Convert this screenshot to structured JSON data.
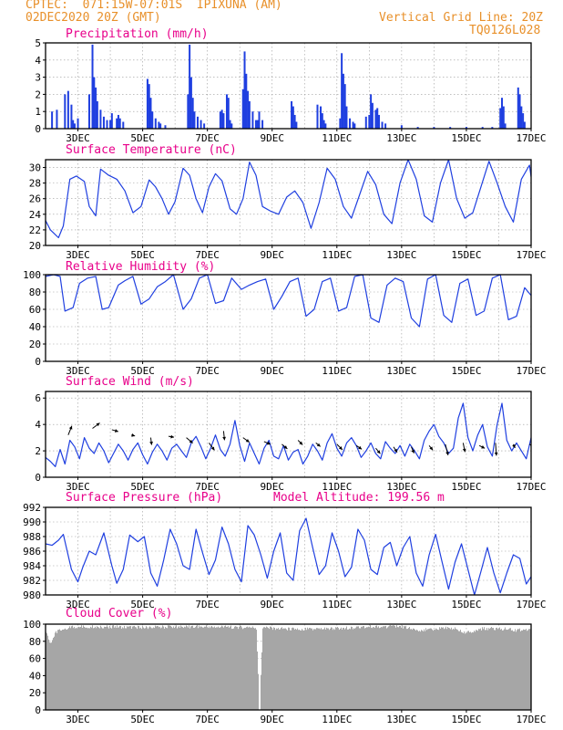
{
  "header": {
    "line1_left": "CPTEC:  071:15W-07:01S  IPIXUNA (AM)",
    "line2_left": "02DEC2020 20Z (GMT)",
    "line1_right": "Vertical Grid Line: 20Z",
    "line2_right": "TQ0126L028"
  },
  "colors": {
    "header": "#e8902a",
    "title": "#e8008a",
    "series": "#1f3fe0",
    "cloud": "#a6a6a6",
    "grid": "#9a9a9a"
  },
  "x_axis": {
    "ticks": [
      "3DEC",
      "5DEC",
      "7DEC",
      "9DEC",
      "11DEC",
      "13DEC",
      "15DEC",
      "17DEC"
    ],
    "range_days": [
      0,
      15
    ]
  },
  "chart_data": [
    {
      "type": "bar",
      "title": "Precipitation (mm/h)",
      "ylim": [
        0,
        5
      ],
      "yticks": [
        "0",
        "1",
        "2",
        "3",
        "4",
        "5"
      ],
      "bars": [
        [
          0.2,
          1.0
        ],
        [
          0.35,
          1.1
        ],
        [
          0.6,
          2.0
        ],
        [
          0.7,
          2.2
        ],
        [
          0.8,
          1.4
        ],
        [
          0.85,
          0.5
        ],
        [
          0.9,
          0.3
        ],
        [
          1.0,
          0.6
        ],
        [
          1.35,
          2.0
        ],
        [
          1.45,
          4.9
        ],
        [
          1.5,
          3.0
        ],
        [
          1.55,
          2.4
        ],
        [
          1.6,
          1.6
        ],
        [
          1.7,
          1.1
        ],
        [
          1.8,
          0.7
        ],
        [
          1.9,
          0.5
        ],
        [
          2.0,
          0.5
        ],
        [
          2.05,
          0.9
        ],
        [
          2.2,
          0.6
        ],
        [
          2.25,
          0.8
        ],
        [
          2.3,
          0.6
        ],
        [
          2.4,
          0.4
        ],
        [
          3.15,
          2.9
        ],
        [
          3.2,
          2.6
        ],
        [
          3.25,
          1.8
        ],
        [
          3.3,
          1.0
        ],
        [
          3.4,
          0.6
        ],
        [
          3.5,
          0.4
        ],
        [
          3.55,
          0.3
        ],
        [
          3.7,
          0.2
        ],
        [
          4.4,
          2.0
        ],
        [
          4.45,
          4.9
        ],
        [
          4.5,
          3.0
        ],
        [
          4.55,
          1.8
        ],
        [
          4.6,
          1.0
        ],
        [
          4.7,
          0.7
        ],
        [
          4.8,
          0.5
        ],
        [
          4.9,
          0.3
        ],
        [
          5.4,
          1.0
        ],
        [
          5.45,
          1.1
        ],
        [
          5.5,
          0.9
        ],
        [
          5.6,
          2.0
        ],
        [
          5.65,
          1.8
        ],
        [
          5.7,
          0.5
        ],
        [
          5.75,
          0.3
        ],
        [
          6.1,
          2.3
        ],
        [
          6.15,
          4.5
        ],
        [
          6.2,
          3.2
        ],
        [
          6.25,
          2.2
        ],
        [
          6.3,
          1.6
        ],
        [
          6.4,
          1.0
        ],
        [
          6.5,
          0.5
        ],
        [
          6.55,
          0.5
        ],
        [
          6.6,
          1.0
        ],
        [
          6.7,
          0.5
        ],
        [
          7.6,
          1.6
        ],
        [
          7.65,
          1.3
        ],
        [
          7.7,
          0.8
        ],
        [
          7.75,
          0.4
        ],
        [
          8.4,
          1.4
        ],
        [
          8.5,
          1.3
        ],
        [
          8.55,
          0.9
        ],
        [
          8.6,
          0.5
        ],
        [
          8.65,
          0.3
        ],
        [
          9.1,
          0.6
        ],
        [
          9.15,
          4.4
        ],
        [
          9.2,
          3.2
        ],
        [
          9.25,
          2.6
        ],
        [
          9.3,
          1.3
        ],
        [
          9.4,
          0.6
        ],
        [
          9.5,
          0.4
        ],
        [
          9.55,
          0.3
        ],
        [
          9.9,
          0.7
        ],
        [
          10.0,
          0.8
        ],
        [
          10.05,
          2.0
        ],
        [
          10.1,
          1.5
        ],
        [
          10.2,
          1.1
        ],
        [
          10.25,
          1.2
        ],
        [
          10.3,
          0.8
        ],
        [
          10.4,
          0.4
        ],
        [
          10.5,
          0.3
        ],
        [
          11.0,
          0.2
        ],
        [
          11.5,
          0.1
        ],
        [
          12.0,
          0.1
        ],
        [
          12.5,
          0.1
        ],
        [
          13.0,
          0.1
        ],
        [
          13.5,
          0.1
        ],
        [
          13.8,
          0.1
        ],
        [
          14.05,
          1.2
        ],
        [
          14.1,
          1.8
        ],
        [
          14.15,
          1.3
        ],
        [
          14.2,
          0.3
        ],
        [
          14.6,
          2.4
        ],
        [
          14.65,
          2.0
        ],
        [
          14.7,
          1.3
        ],
        [
          14.75,
          0.9
        ],
        [
          14.8,
          0.4
        ],
        [
          15.45,
          0.5
        ],
        [
          15.5,
          4.5
        ],
        [
          15.55,
          3.9
        ],
        [
          15.6,
          0.9
        ],
        [
          15.65,
          0.2
        ]
      ]
    },
    {
      "type": "line",
      "title": "Surface Temperature (nC)",
      "ylim": [
        20,
        31
      ],
      "yticks": [
        "20",
        "22",
        "24",
        "26",
        "28",
        "30"
      ],
      "x": [
        0.0,
        0.15,
        0.4,
        0.55,
        0.75,
        0.95,
        1.2,
        1.35,
        1.55,
        1.7,
        1.95,
        2.2,
        2.45,
        2.7,
        2.95,
        3.2,
        3.4,
        3.6,
        3.8,
        4.0,
        4.25,
        4.45,
        4.65,
        4.85,
        5.05,
        5.25,
        5.45,
        5.7,
        5.9,
        6.1,
        6.3,
        6.5,
        6.7,
        6.95,
        7.2,
        7.45,
        7.7,
        7.95,
        8.2,
        8.45,
        8.7,
        8.95,
        9.2,
        9.45,
        9.7,
        9.95,
        10.2,
        10.45,
        10.7,
        10.95,
        11.2,
        11.45,
        11.7,
        11.95,
        12.2,
        12.45,
        12.7,
        12.95,
        13.2,
        13.45,
        13.7,
        13.95,
        14.2,
        14.45,
        14.7,
        14.95,
        15.0
      ],
      "values": [
        23.2,
        22.0,
        21.0,
        22.5,
        28.5,
        28.9,
        28.2,
        25.0,
        23.8,
        29.8,
        29.0,
        28.5,
        27.0,
        24.2,
        25.0,
        28.4,
        27.5,
        26.0,
        24.0,
        25.6,
        29.9,
        29.0,
        26.0,
        24.2,
        27.5,
        29.2,
        28.3,
        24.7,
        24.0,
        26.0,
        30.7,
        29.0,
        25.0,
        24.4,
        24.0,
        26.2,
        27.0,
        25.5,
        22.2,
        25.5,
        29.9,
        28.5,
        25.0,
        23.5,
        26.5,
        29.5,
        27.8,
        24.0,
        22.8,
        28.0,
        31.0,
        28.5,
        23.8,
        23.0,
        28.0,
        31.0,
        26.0,
        23.5,
        24.2,
        27.5,
        30.8,
        28.0,
        25.0,
        23.0,
        28.5,
        30.3,
        28.8
      ]
    },
    {
      "type": "line",
      "title": "Relative Humidity (%)",
      "ylim": [
        0,
        100
      ],
      "yticks": [
        "0",
        "20",
        "40",
        "60",
        "80",
        "100"
      ],
      "x": [
        0.0,
        0.25,
        0.45,
        0.6,
        0.85,
        1.05,
        1.3,
        1.55,
        1.75,
        1.95,
        2.25,
        2.45,
        2.7,
        2.95,
        3.2,
        3.45,
        3.7,
        3.95,
        4.25,
        4.5,
        4.75,
        5.0,
        5.25,
        5.5,
        5.75,
        6.05,
        6.3,
        6.55,
        6.8,
        7.05,
        7.3,
        7.55,
        7.8,
        8.05,
        8.3,
        8.55,
        8.8,
        9.05,
        9.3,
        9.55,
        9.8,
        10.05,
        10.3,
        10.55,
        10.8,
        11.05,
        11.3,
        11.55,
        11.8,
        12.05,
        12.3,
        12.55,
        12.8,
        13.05,
        13.3,
        13.55,
        13.8,
        14.05,
        14.3,
        14.55,
        14.8,
        15.0
      ],
      "values": [
        98,
        100,
        98,
        58,
        62,
        90,
        96,
        98,
        60,
        62,
        88,
        93,
        98,
        66,
        72,
        86,
        92,
        100,
        60,
        72,
        96,
        100,
        67,
        70,
        96,
        83,
        88,
        92,
        95,
        60,
        75,
        92,
        96,
        52,
        60,
        92,
        96,
        58,
        62,
        98,
        100,
        50,
        45,
        88,
        96,
        92,
        50,
        40,
        95,
        100,
        53,
        45,
        90,
        95,
        53,
        58,
        96,
        100,
        48,
        52,
        85,
        76
      ]
    },
    {
      "type": "line",
      "title": "Surface Wind (m/s)",
      "ylim": [
        0,
        6.5
      ],
      "yticks": [
        "0",
        "2",
        "4",
        "6"
      ],
      "x": [
        0.0,
        0.15,
        0.3,
        0.45,
        0.6,
        0.75,
        0.9,
        1.05,
        1.2,
        1.35,
        1.5,
        1.65,
        1.8,
        1.95,
        2.1,
        2.25,
        2.4,
        2.55,
        2.7,
        2.85,
        3.0,
        3.15,
        3.3,
        3.45,
        3.6,
        3.75,
        3.9,
        4.05,
        4.2,
        4.35,
        4.5,
        4.65,
        4.8,
        4.95,
        5.1,
        5.25,
        5.4,
        5.55,
        5.7,
        5.85,
        6.0,
        6.15,
        6.3,
        6.45,
        6.6,
        6.75,
        6.9,
        7.05,
        7.2,
        7.35,
        7.5,
        7.65,
        7.8,
        7.95,
        8.1,
        8.25,
        8.4,
        8.55,
        8.7,
        8.85,
        9.0,
        9.15,
        9.3,
        9.45,
        9.6,
        9.75,
        9.9,
        10.05,
        10.2,
        10.35,
        10.5,
        10.65,
        10.8,
        10.95,
        11.1,
        11.25,
        11.4,
        11.55,
        11.7,
        11.85,
        12.0,
        12.15,
        12.3,
        12.45,
        12.6,
        12.75,
        12.9,
        13.05,
        13.2,
        13.35,
        13.5,
        13.65,
        13.8,
        13.95,
        14.1,
        14.25,
        14.4,
        14.55,
        14.7,
        14.85,
        15.0
      ],
      "values": [
        1.5,
        1.2,
        0.8,
        2.1,
        1.0,
        2.8,
        2.3,
        1.4,
        3.0,
        2.2,
        1.8,
        2.6,
        2.0,
        1.1,
        1.8,
        2.5,
        2.0,
        1.3,
        2.1,
        2.6,
        1.7,
        1.0,
        1.9,
        2.5,
        2.0,
        1.3,
        2.2,
        2.5,
        2.0,
        1.5,
        2.6,
        3.1,
        2.3,
        1.4,
        2.2,
        3.2,
        2.1,
        1.6,
        2.5,
        4.3,
        2.4,
        1.2,
        2.6,
        1.8,
        1.0,
        2.2,
        2.8,
        1.6,
        1.4,
        2.4,
        1.3,
        1.9,
        2.1,
        1.0,
        1.6,
        2.5,
        2.0,
        1.3,
        2.6,
        3.3,
        2.2,
        1.6,
        2.6,
        3.0,
        2.4,
        1.5,
        2.0,
        2.6,
        1.8,
        1.4,
        2.7,
        2.2,
        1.8,
        2.4,
        1.6,
        2.5,
        2.0,
        1.4,
        2.8,
        3.5,
        4.0,
        3.1,
        2.6,
        1.8,
        2.2,
        4.5,
        5.6,
        3.0,
        2.0,
        3.2,
        4.0,
        2.3,
        1.6,
        4.0,
        5.6,
        2.8,
        2.0,
        2.6,
        2.0,
        1.4,
        3.0
      ],
      "arrows": [
        [
          0.7,
          3.2,
          0.4,
          1.0
        ],
        [
          1.45,
          3.7,
          0.8,
          0.6
        ],
        [
          2.05,
          3.6,
          0.7,
          -0.2
        ],
        [
          2.65,
          3.2,
          0.4,
          -0.1
        ],
        [
          3.25,
          3.0,
          0.1,
          -0.8
        ],
        [
          3.8,
          3.1,
          0.6,
          -0.1
        ],
        [
          4.35,
          3.0,
          0.7,
          -0.6
        ],
        [
          5.05,
          2.6,
          0.6,
          -0.8
        ],
        [
          5.5,
          3.5,
          0.1,
          -1.0
        ],
        [
          6.1,
          3.0,
          0.7,
          -0.5
        ],
        [
          6.75,
          2.7,
          0.7,
          -0.3
        ],
        [
          7.3,
          2.5,
          0.6,
          -0.5
        ],
        [
          7.8,
          2.8,
          0.5,
          -0.5
        ],
        [
          8.35,
          2.6,
          0.5,
          -0.4
        ],
        [
          9.0,
          2.5,
          0.6,
          -0.6
        ],
        [
          9.6,
          2.4,
          0.6,
          -0.4
        ],
        [
          10.2,
          2.2,
          0.5,
          -0.6
        ],
        [
          10.75,
          2.3,
          0.4,
          -0.6
        ],
        [
          11.3,
          2.3,
          0.3,
          -0.7
        ],
        [
          11.85,
          2.4,
          0.4,
          -0.5
        ],
        [
          12.35,
          2.5,
          0.3,
          -1.2
        ],
        [
          12.9,
          2.6,
          0.2,
          -1.0
        ],
        [
          13.4,
          2.4,
          0.6,
          -0.3
        ],
        [
          13.9,
          2.6,
          0.1,
          -1.4
        ],
        [
          14.45,
          2.5,
          0.2,
          -0.4
        ],
        [
          14.95,
          2.5,
          0.6,
          -0.4
        ],
        [
          15.0,
          2.2,
          0.3,
          -0.8
        ]
      ]
    },
    {
      "type": "line",
      "title": "Surface Pressure (hPa)",
      "annotation": "Model Altitude: 199.56 m",
      "ylim": [
        980,
        992
      ],
      "yticks": [
        "980",
        "982",
        "984",
        "986",
        "988",
        "990",
        "992"
      ],
      "x": [
        0.0,
        0.2,
        0.4,
        0.55,
        0.8,
        1.0,
        1.15,
        1.35,
        1.55,
        1.8,
        2.05,
        2.2,
        2.4,
        2.6,
        2.85,
        3.05,
        3.25,
        3.45,
        3.65,
        3.85,
        4.05,
        4.25,
        4.45,
        4.65,
        4.85,
        5.05,
        5.25,
        5.45,
        5.65,
        5.85,
        6.05,
        6.25,
        6.45,
        6.65,
        6.85,
        7.05,
        7.25,
        7.45,
        7.65,
        7.85,
        8.05,
        8.25,
        8.45,
        8.65,
        8.85,
        9.05,
        9.25,
        9.45,
        9.65,
        9.85,
        10.05,
        10.25,
        10.45,
        10.65,
        10.85,
        11.05,
        11.25,
        11.45,
        11.65,
        11.85,
        12.05,
        12.25,
        12.45,
        12.65,
        12.85,
        13.05,
        13.25,
        13.45,
        13.65,
        13.85,
        14.05,
        14.25,
        14.45,
        14.65,
        14.85,
        15.0
      ],
      "values": [
        987.0,
        986.8,
        987.5,
        988.3,
        983.5,
        981.8,
        983.8,
        986.0,
        985.5,
        988.5,
        984.0,
        981.6,
        983.5,
        988.2,
        987.3,
        988.0,
        983.0,
        981.2,
        984.8,
        989.0,
        987.0,
        984.0,
        983.5,
        989.0,
        985.8,
        982.8,
        984.8,
        989.3,
        987.0,
        983.5,
        981.8,
        989.5,
        988.2,
        985.5,
        982.3,
        986.0,
        988.5,
        983.0,
        982.0,
        988.8,
        990.5,
        986.5,
        982.8,
        984.0,
        988.5,
        986.0,
        982.5,
        983.8,
        989.0,
        987.5,
        983.5,
        982.8,
        986.5,
        987.2,
        984.0,
        986.5,
        988.0,
        983.0,
        981.2,
        985.5,
        988.3,
        984.5,
        980.8,
        984.5,
        987.0,
        983.5,
        980.0,
        983.2,
        986.5,
        983.0,
        980.3,
        983.0,
        985.5,
        985.0,
        981.5,
        982.5
      ]
    },
    {
      "type": "area",
      "title": "Cloud Cover (%)",
      "ylim": [
        0,
        100
      ],
      "yticks": [
        "0",
        "20",
        "40",
        "60",
        "80",
        "100"
      ],
      "x": [
        0.0,
        0.05,
        0.1,
        0.15,
        0.2,
        0.3,
        0.5,
        0.7,
        1.0,
        2.0,
        3.0,
        4.0,
        5.0,
        6.5,
        6.6,
        6.7,
        7.0,
        8.0,
        9.0,
        10.0,
        11.0,
        11.5,
        12.0,
        12.5,
        13.0,
        13.5,
        14.0,
        14.5,
        15.0
      ],
      "values": [
        92,
        88,
        82,
        78,
        85,
        92,
        96,
        98,
        99,
        99,
        98,
        99,
        99,
        98,
        0,
        98,
        97,
        96,
        97,
        99,
        99,
        95,
        96,
        98,
        92,
        97,
        97,
        95,
        96
      ]
    }
  ]
}
